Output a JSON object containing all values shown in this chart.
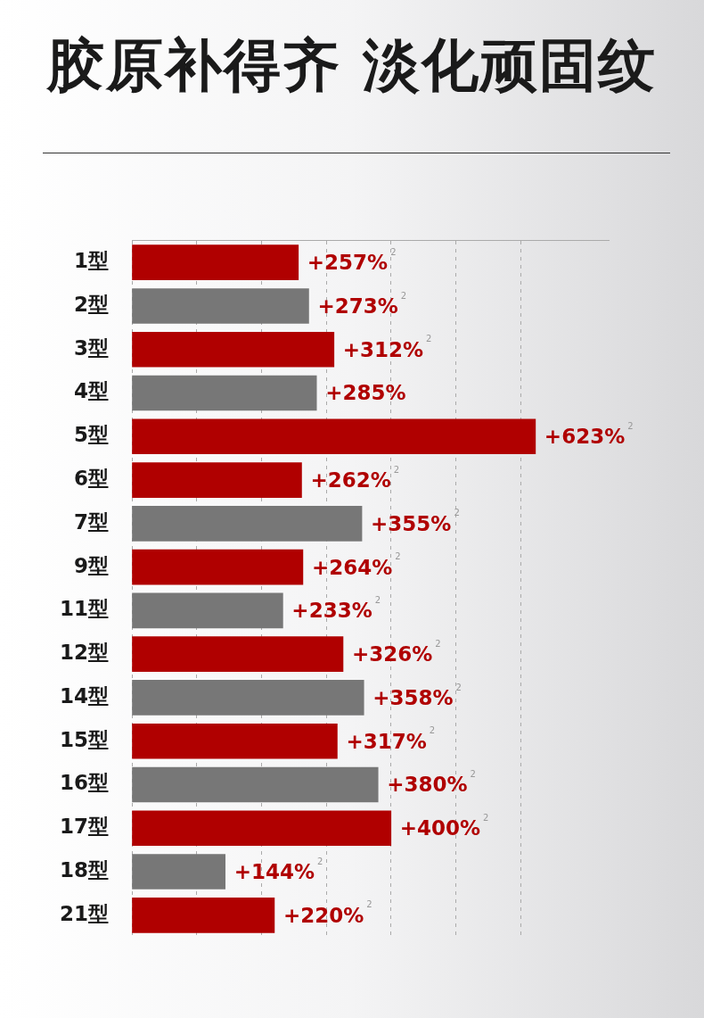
{
  "chart_data": {
    "type": "bar",
    "orientation": "horizontal",
    "title": "胶原补得齐 淡化顽固纹",
    "categories": [
      "1型",
      "2型",
      "3型",
      "4型",
      "5型",
      "6型",
      "7型",
      "9型",
      "11型",
      "12型",
      "14型",
      "15型",
      "16型",
      "17型",
      "18型",
      "21型"
    ],
    "values": [
      257,
      273,
      312,
      285,
      623,
      262,
      355,
      264,
      233,
      326,
      358,
      317,
      380,
      400,
      144,
      220
    ],
    "colors": [
      "#b00000",
      "#777777",
      "#b00000",
      "#777777",
      "#b00000",
      "#b00000",
      "#777777",
      "#b00000",
      "#777777",
      "#b00000",
      "#777777",
      "#b00000",
      "#777777",
      "#b00000",
      "#777777",
      "#b00000"
    ],
    "value_labels": [
      "+257%$^{2}$",
      "+273%$^{2}$",
      "+312%$^{2}$",
      "+285%",
      "+623%$^{2}$",
      "+262%$^{2}$",
      "+355%$^{2}$",
      "+264%$^{2}$",
      "+233%$^{2}$",
      "+326%$^{2}$",
      "+358%$^{2}$",
      "+317%$^{2}$",
      "+380%$^{2}$",
      "+400%$^{2}$",
      "+144%$^{2}$",
      "+220%$^{2}$"
    ],
    "xlim": [
      0,
      736
    ],
    "xticks": [
      {
        "value": 0,
        "label": null
      },
      {
        "value": 100,
        "label": null
      },
      {
        "value": 200,
        "label": null
      },
      {
        "value": 300,
        "label": null
      },
      {
        "value": 400,
        "label": null
      },
      {
        "value": 500,
        "label": null
      },
      {
        "value": 600,
        "label": null
      }
    ],
    "grid": "x",
    "legend": false,
    "tick_labels": "y"
  }
}
